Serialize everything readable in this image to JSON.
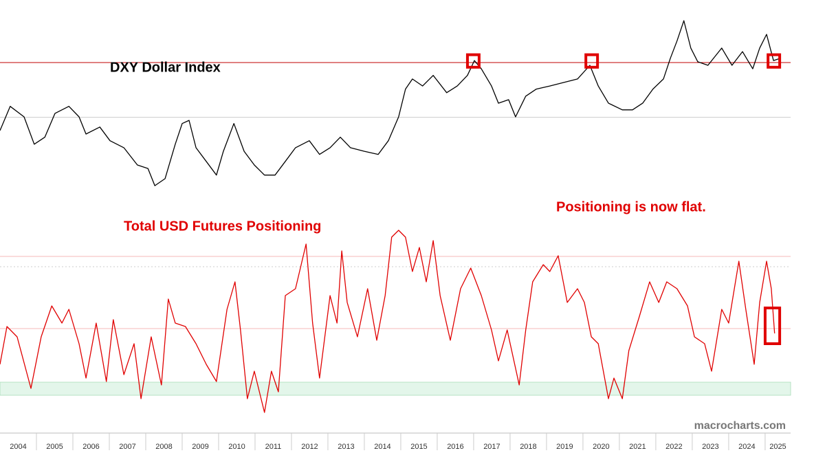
{
  "chart_data": [
    {
      "type": "line",
      "title": "DXY Dollar Index",
      "color": "#000000",
      "x": [
        2004.0,
        2004.28,
        2004.66,
        2004.94,
        2005.23,
        2005.51,
        2005.89,
        2006.17,
        2006.36,
        2006.74,
        2007.02,
        2007.4,
        2007.77,
        2008.06,
        2008.25,
        2008.53,
        2008.81,
        2009.0,
        2009.19,
        2009.38,
        2009.66,
        2009.94,
        2010.13,
        2010.42,
        2010.7,
        2010.98,
        2011.26,
        2011.55,
        2011.83,
        2012.11,
        2012.49,
        2012.77,
        2013.06,
        2013.34,
        2013.62,
        2014.0,
        2014.38,
        2014.66,
        2014.94,
        2015.13,
        2015.32,
        2015.6,
        2015.89,
        2016.26,
        2016.55,
        2016.83,
        2017.02,
        2017.21,
        2017.49,
        2017.68,
        2017.96,
        2018.15,
        2018.43,
        2018.72,
        2019.09,
        2019.47,
        2019.85,
        2020.19,
        2020.42,
        2020.7,
        2021.08,
        2021.36,
        2021.64,
        2021.92,
        2022.21,
        2022.4,
        2022.58,
        2022.77,
        2022.96,
        2023.15,
        2023.43,
        2023.81,
        2024.09,
        2024.38,
        2024.66,
        2024.85,
        2025.04,
        2025.23,
        2025.42
      ],
      "values": [
        85.6,
        91.8,
        89.1,
        82.1,
        83.9,
        90.0,
        91.8,
        89.1,
        84.7,
        86.5,
        83.0,
        81.2,
        76.8,
        75.9,
        71.5,
        73.3,
        82.1,
        87.4,
        88.2,
        81.2,
        77.7,
        74.2,
        80.3,
        87.4,
        80.3,
        76.8,
        74.2,
        74.2,
        77.7,
        81.2,
        83.0,
        79.5,
        81.2,
        83.9,
        81.2,
        80.3,
        79.5,
        83.0,
        89.1,
        96.2,
        98.8,
        97.0,
        99.7,
        95.3,
        97.0,
        99.7,
        103.5,
        101.4,
        97.0,
        92.6,
        93.5,
        89.1,
        94.4,
        96.2,
        97.0,
        97.9,
        98.8,
        102.3,
        97.0,
        92.6,
        90.9,
        90.9,
        92.6,
        96.2,
        98.8,
        104.1,
        108.5,
        113.7,
        106.7,
        103.2,
        102.3,
        106.7,
        102.3,
        105.8,
        101.4,
        106.7,
        110.2,
        103.5,
        104.1
      ],
      "xlim": [
        2004,
        2025.7
      ],
      "ylim": [
        68,
        119
      ],
      "reference_lines": [
        {
          "value": 103,
          "color": "#c00000"
        },
        {
          "value": 89,
          "color": "#cccccc"
        }
      ],
      "highlights": [
        {
          "x": [
            2016.83,
            2017.15
          ],
          "y": [
            101.8,
            105.0
          ]
        },
        {
          "x": [
            2020.08,
            2020.4
          ],
          "y": [
            101.8,
            105.0
          ]
        },
        {
          "x": [
            2025.08,
            2025.4
          ],
          "y": [
            101.8,
            105.0
          ]
        }
      ],
      "highlight_color": "#e00000"
    },
    {
      "type": "line",
      "title": "Total USD Futures Positioning",
      "annotation": "Positioning is now flat.",
      "color": "#e00000",
      "x": [
        2004.0,
        2004.19,
        2004.47,
        2004.85,
        2005.13,
        2005.42,
        2005.7,
        2005.89,
        2006.17,
        2006.36,
        2006.64,
        2006.92,
        2007.11,
        2007.4,
        2007.68,
        2007.87,
        2008.15,
        2008.43,
        2008.62,
        2008.81,
        2009.09,
        2009.38,
        2009.66,
        2009.94,
        2010.23,
        2010.45,
        2010.6,
        2010.79,
        2010.98,
        2011.26,
        2011.45,
        2011.64,
        2011.83,
        2012.11,
        2012.4,
        2012.58,
        2012.77,
        2013.06,
        2013.25,
        2013.38,
        2013.53,
        2013.81,
        2014.09,
        2014.34,
        2014.57,
        2014.75,
        2014.94,
        2015.13,
        2015.32,
        2015.51,
        2015.7,
        2015.89,
        2016.08,
        2016.36,
        2016.64,
        2016.92,
        2017.21,
        2017.49,
        2017.68,
        2017.92,
        2018.25,
        2018.43,
        2018.62,
        2018.91,
        2019.09,
        2019.32,
        2019.57,
        2019.85,
        2020.04,
        2020.23,
        2020.42,
        2020.7,
        2020.85,
        2021.08,
        2021.26,
        2021.55,
        2021.83,
        2022.08,
        2022.3,
        2022.58,
        2022.87,
        2023.06,
        2023.34,
        2023.53,
        2023.81,
        2024.0,
        2024.28,
        2024.47,
        2024.7,
        2024.85,
        2025.04,
        2025.17,
        2025.26
      ],
      "values": [
        -10.4,
        0.6,
        -2.4,
        -17.4,
        -2.4,
        6.6,
        1.6,
        5.6,
        -4.4,
        -14.4,
        1.6,
        -15.4,
        2.6,
        -13.4,
        -4.4,
        -20.4,
        -2.4,
        -16.4,
        8.6,
        1.6,
        0.6,
        -4.4,
        -10.4,
        -15.4,
        5.6,
        13.6,
        -0.4,
        -20.4,
        -12.4,
        -24.4,
        -12.4,
        -18.4,
        9.6,
        11.6,
        24.6,
        1.6,
        -14.4,
        9.6,
        1.6,
        22.6,
        7.6,
        -2.4,
        11.6,
        -3.4,
        9.6,
        26.6,
        28.6,
        26.6,
        16.6,
        23.6,
        13.6,
        25.6,
        9.6,
        -3.4,
        11.6,
        17.6,
        9.6,
        -0.4,
        -9.4,
        -0.4,
        -16.4,
        -0.4,
        13.6,
        18.6,
        16.6,
        21.2,
        7.6,
        11.6,
        7.6,
        -2.4,
        -4.4,
        -20.4,
        -14.4,
        -20.4,
        -6.4,
        3.6,
        13.6,
        7.6,
        13.6,
        11.6,
        6.6,
        -2.4,
        -4.4,
        -12.4,
        5.6,
        1.6,
        19.6,
        5.6,
        -10.4,
        7.6,
        19.6,
        11.6,
        -1.4
      ],
      "xlim": [
        2004,
        2025.7
      ],
      "ylim": [
        -30,
        34
      ],
      "xticks": [
        2004,
        2005,
        2006,
        2007,
        2008,
        2009,
        2010,
        2011,
        2012,
        2013,
        2014,
        2015,
        2016,
        2017,
        2018,
        2019,
        2020,
        2021,
        2022,
        2023,
        2024,
        2025
      ],
      "reference_lines": [
        {
          "value": 21,
          "color": "#f4b8b8"
        },
        {
          "value": 18,
          "color": "#cccccc",
          "dashed": true
        },
        {
          "value": 0,
          "color": "#f4b8b8"
        }
      ],
      "band": {
        "y": [
          -19.4,
          -15.6
        ],
        "color": "#e3f6ea"
      },
      "highlights": [
        {
          "x": [
            2025.0,
            2025.4
          ],
          "y": [
            -4.4,
            6.0
          ]
        }
      ],
      "highlight_color": "#e00000"
    }
  ],
  "watermark": "macrocharts.com"
}
